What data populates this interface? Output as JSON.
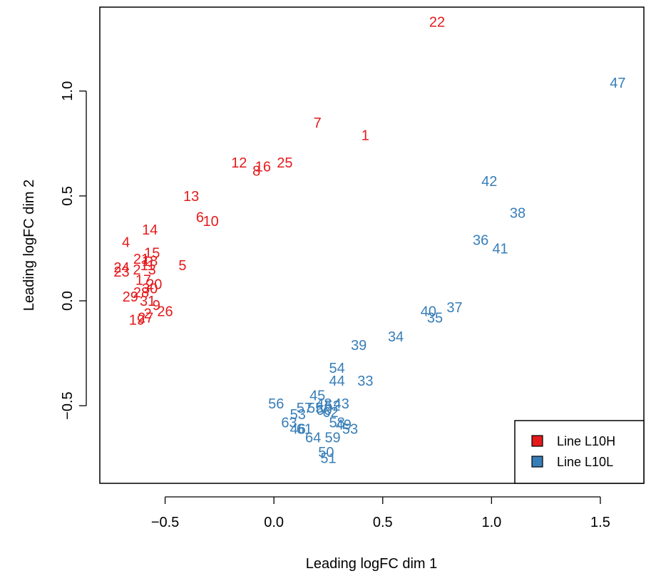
{
  "chart_data": {
    "type": "scatter",
    "title": "",
    "xlabel": "Leading logFC dim 1",
    "ylabel": "Leading logFC dim 2",
    "xlim": [
      -0.8,
      1.7
    ],
    "ylim": [
      -0.87,
      1.4
    ],
    "xticks": [
      -0.5,
      0.0,
      0.5,
      1.0,
      1.5
    ],
    "yticks": [
      -0.5,
      0.0,
      0.5,
      1.0
    ],
    "xtick_labels": [
      "−0.5",
      "0.0",
      "0.5",
      "1.0",
      "1.5"
    ],
    "ytick_labels": [
      "−0.5",
      "0.0",
      "0.5",
      "1.0"
    ],
    "grid": false,
    "legend_position": "bottom-right",
    "series": [
      {
        "name": "Line L10H",
        "color": "#e41a1c",
        "points": [
          {
            "label": "22",
            "x": 0.75,
            "y": 1.33
          },
          {
            "label": "7",
            "x": 0.2,
            "y": 0.85
          },
          {
            "label": "1",
            "x": 0.42,
            "y": 0.79
          },
          {
            "label": "12",
            "x": -0.16,
            "y": 0.66
          },
          {
            "label": "8",
            "x": -0.08,
            "y": 0.62
          },
          {
            "label": "16",
            "x": -0.05,
            "y": 0.64
          },
          {
            "label": "25",
            "x": 0.05,
            "y": 0.66
          },
          {
            "label": "13",
            "x": -0.38,
            "y": 0.5
          },
          {
            "label": "6",
            "x": -0.34,
            "y": 0.4
          },
          {
            "label": "10",
            "x": -0.29,
            "y": 0.38
          },
          {
            "label": "14",
            "x": -0.57,
            "y": 0.34
          },
          {
            "label": "4",
            "x": -0.68,
            "y": 0.28
          },
          {
            "label": "15",
            "x": -0.56,
            "y": 0.23
          },
          {
            "label": "21",
            "x": -0.61,
            "y": 0.2
          },
          {
            "label": "18",
            "x": -0.57,
            "y": 0.19
          },
          {
            "label": "5",
            "x": -0.42,
            "y": 0.17
          },
          {
            "label": "24",
            "x": -0.7,
            "y": 0.16
          },
          {
            "label": "23",
            "x": -0.7,
            "y": 0.14
          },
          {
            "label": "2",
            "x": -0.63,
            "y": 0.15
          },
          {
            "label": "3",
            "x": -0.56,
            "y": 0.15
          },
          {
            "label": "11",
            "x": -0.58,
            "y": 0.17
          },
          {
            "label": "17",
            "x": -0.6,
            "y": 0.1
          },
          {
            "label": "20",
            "x": -0.55,
            "y": 0.08
          },
          {
            "label": "30",
            "x": -0.57,
            "y": 0.06
          },
          {
            "label": "28",
            "x": -0.61,
            "y": 0.04
          },
          {
            "label": "29",
            "x": -0.66,
            "y": 0.02
          },
          {
            "label": "31",
            "x": -0.58,
            "y": 0.0
          },
          {
            "label": "9",
            "x": -0.54,
            "y": -0.02
          },
          {
            "label": "26",
            "x": -0.5,
            "y": -0.05
          },
          {
            "label": "2",
            "x": -0.58,
            "y": -0.06
          },
          {
            "label": "27",
            "x": -0.59,
            "y": -0.08
          },
          {
            "label": "19",
            "x": -0.63,
            "y": -0.09
          }
        ]
      },
      {
        "name": "Line L10L",
        "color": "#377eb8",
        "points": [
          {
            "label": "47",
            "x": 1.58,
            "y": 1.04
          },
          {
            "label": "42",
            "x": 0.99,
            "y": 0.57
          },
          {
            "label": "38",
            "x": 1.12,
            "y": 0.42
          },
          {
            "label": "36",
            "x": 0.95,
            "y": 0.29
          },
          {
            "label": "41",
            "x": 1.04,
            "y": 0.25
          },
          {
            "label": "37",
            "x": 0.83,
            "y": -0.03
          },
          {
            "label": "40",
            "x": 0.71,
            "y": -0.05
          },
          {
            "label": "35",
            "x": 0.74,
            "y": -0.08
          },
          {
            "label": "34",
            "x": 0.56,
            "y": -0.17
          },
          {
            "label": "39",
            "x": 0.39,
            "y": -0.21
          },
          {
            "label": "54",
            "x": 0.29,
            "y": -0.32
          },
          {
            "label": "44",
            "x": 0.29,
            "y": -0.38
          },
          {
            "label": "33",
            "x": 0.42,
            "y": -0.38
          },
          {
            "label": "45",
            "x": 0.2,
            "y": -0.45
          },
          {
            "label": "56",
            "x": 0.01,
            "y": -0.49
          },
          {
            "label": "48",
            "x": 0.23,
            "y": -0.49
          },
          {
            "label": "43",
            "x": 0.31,
            "y": -0.49
          },
          {
            "label": "52",
            "x": 0.27,
            "y": -0.5
          },
          {
            "label": "57",
            "x": 0.14,
            "y": -0.51
          },
          {
            "label": "55",
            "x": 0.19,
            "y": -0.51
          },
          {
            "label": "60",
            "x": 0.23,
            "y": -0.52
          },
          {
            "label": "62",
            "x": 0.26,
            "y": -0.53
          },
          {
            "label": "53",
            "x": 0.11,
            "y": -0.54
          },
          {
            "label": "63",
            "x": 0.07,
            "y": -0.58
          },
          {
            "label": "58",
            "x": 0.29,
            "y": -0.58
          },
          {
            "label": "49",
            "x": 0.32,
            "y": -0.59
          },
          {
            "label": "61",
            "x": 0.14,
            "y": -0.61
          },
          {
            "label": "46",
            "x": 0.11,
            "y": -0.61
          },
          {
            "label": "53",
            "x": 0.35,
            "y": -0.61
          },
          {
            "label": "59",
            "x": 0.27,
            "y": -0.65
          },
          {
            "label": "64",
            "x": 0.18,
            "y": -0.65
          },
          {
            "label": "50",
            "x": 0.24,
            "y": -0.72
          },
          {
            "label": "51",
            "x": 0.25,
            "y": -0.75
          }
        ]
      }
    ]
  }
}
